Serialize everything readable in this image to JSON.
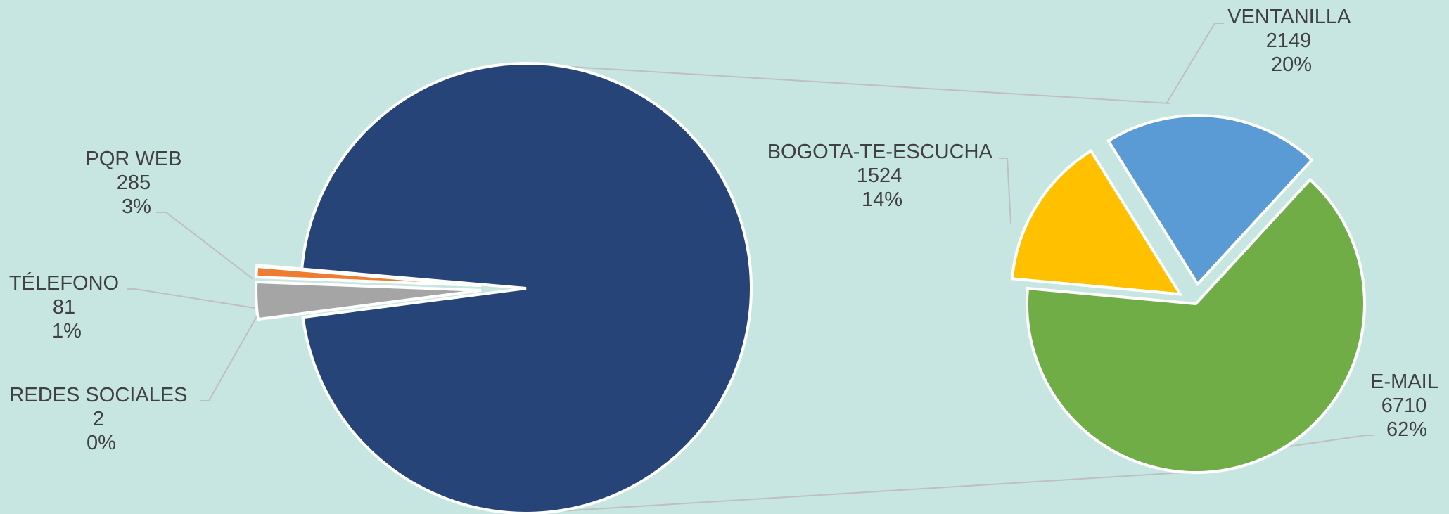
{
  "chart_data": {
    "type": "pie",
    "subtype": "bar-of-pie / pie-of-pie",
    "primary_pie": {
      "slices": [
        {
          "name": "PQR WEB",
          "value": 285,
          "percent": "3%",
          "color": "#a5a5a5"
        },
        {
          "name": "TÉLEFONO",
          "value": 81,
          "percent": "1%",
          "color": "#ed7d31"
        },
        {
          "name": "REDES SOCIALES",
          "value": 2,
          "percent": "0%",
          "color": "#4472c4"
        },
        {
          "name": "",
          "value": 10383,
          "percent": "",
          "color": "#264478",
          "is_group": true
        }
      ]
    },
    "secondary_pie": {
      "slices": [
        {
          "name": "VENTANILLA",
          "value": 2149,
          "percent": "20%",
          "color": "#5b9bd5"
        },
        {
          "name": "E-MAIL",
          "value": 6710,
          "percent": "62%",
          "color": "#70ad47"
        },
        {
          "name": "BOGOTA-TE-ESCUCHA",
          "value": 1524,
          "percent": "14%",
          "color": "#ffc000"
        }
      ]
    },
    "legend": "none",
    "background": "#c7e6e1"
  }
}
